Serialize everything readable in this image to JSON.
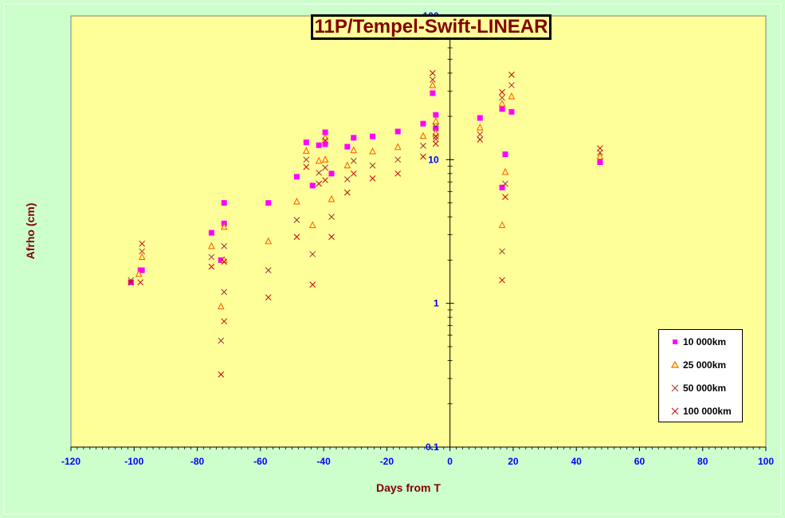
{
  "colors": {
    "outer_background": "#ccffcc",
    "plot_background": "#ffff99",
    "title_text": "#800000",
    "axis_title": "#800000",
    "tick_label": "#0000ff",
    "series_10000": "#ff00ff",
    "series_25000": "#ff6600",
    "series_50000": "#993333",
    "series_100000": "#cc0000"
  },
  "chart_data": {
    "type": "scatter",
    "title": "11P/Tempel-Swift-LINEAR",
    "xlabel": "Days from  T",
    "ylabel": "Afrho (cm)",
    "xlim": [
      -120,
      100
    ],
    "ylim": [
      0.1,
      100
    ],
    "yscale": "log",
    "x_ticks": [
      -120,
      -100,
      -80,
      -60,
      -40,
      -20,
      0,
      20,
      40,
      60,
      80,
      100
    ],
    "y_ticks": [
      0.1,
      1,
      10,
      100
    ],
    "y_tick_labels": [
      "0.1",
      "1",
      "10",
      "100"
    ],
    "grid": false,
    "y_axis_position": "x=0",
    "legend_position": "bottom-right",
    "series": [
      {
        "name": "10 000km",
        "marker": "square",
        "color": "#ff00ff",
        "points": [
          [
            -101,
            1.4
          ],
          [
            -98,
            1.7
          ],
          [
            -97.5,
            1.7
          ],
          [
            -75.5,
            3.1
          ],
          [
            -72.5,
            2.0
          ],
          [
            -71.5,
            5.0
          ],
          [
            -71.5,
            3.6
          ],
          [
            -57.5,
            5.0
          ],
          [
            -48.5,
            7.6
          ],
          [
            -45.5,
            13.2
          ],
          [
            -43.5,
            6.6
          ],
          [
            -41.5,
            12.6
          ],
          [
            -39.5,
            15.5
          ],
          [
            -39.5,
            12.8
          ],
          [
            -37.5,
            8.0
          ],
          [
            -32.5,
            12.3
          ],
          [
            -30.5,
            14.2
          ],
          [
            -24.5,
            14.5
          ],
          [
            -16.5,
            15.7
          ],
          [
            -8.5,
            17.8
          ],
          [
            -5.5,
            29.0
          ],
          [
            -4.5,
            20.5
          ],
          [
            -4.5,
            16.5
          ],
          [
            9.5,
            19.5
          ],
          [
            16.5,
            22.5
          ],
          [
            16.5,
            6.4
          ],
          [
            17.5,
            10.9
          ],
          [
            19.5,
            21.5
          ],
          [
            47.5,
            9.6
          ]
        ]
      },
      {
        "name": "25 000km",
        "marker": "triangle",
        "color": "#ff6600",
        "points": [
          [
            -98.5,
            1.6
          ],
          [
            -97.5,
            2.1
          ],
          [
            -75.5,
            2.5
          ],
          [
            -72.5,
            0.95
          ],
          [
            -71.5,
            3.4
          ],
          [
            -71.5,
            2.0
          ],
          [
            -57.5,
            2.7
          ],
          [
            -48.5,
            5.1
          ],
          [
            -45.5,
            11.5
          ],
          [
            -43.5,
            3.5
          ],
          [
            -41.5,
            9.8
          ],
          [
            -39.5,
            14.2
          ],
          [
            -39.5,
            10.0
          ],
          [
            -37.5,
            5.3
          ],
          [
            -32.5,
            9.1
          ],
          [
            -30.5,
            11.6
          ],
          [
            -24.5,
            11.4
          ],
          [
            -16.5,
            12.2
          ],
          [
            -8.5,
            14.6
          ],
          [
            -5.5,
            33.0
          ],
          [
            -4.5,
            18.5
          ],
          [
            -4.5,
            15.3
          ],
          [
            9.5,
            16.7
          ],
          [
            16.5,
            24.5
          ],
          [
            16.5,
            3.5
          ],
          [
            17.5,
            8.2
          ],
          [
            19.5,
            27.5
          ],
          [
            47.5,
            10.5
          ]
        ]
      },
      {
        "name": "50 000km",
        "marker": "x",
        "color": "#993333",
        "points": [
          [
            -101,
            1.45
          ],
          [
            -97.5,
            2.3
          ],
          [
            -75.5,
            2.1
          ],
          [
            -72.5,
            0.55
          ],
          [
            -71.5,
            2.5
          ],
          [
            -71.5,
            1.2
          ],
          [
            -57.5,
            1.7
          ],
          [
            -48.5,
            3.8
          ],
          [
            -45.5,
            10.0
          ],
          [
            -43.5,
            2.2
          ],
          [
            -41.5,
            8.1
          ],
          [
            -39.5,
            13.6
          ],
          [
            -39.5,
            8.8
          ],
          [
            -37.5,
            4.0
          ],
          [
            -32.5,
            7.3
          ],
          [
            -30.5,
            9.8
          ],
          [
            -24.5,
            9.1
          ],
          [
            -16.5,
            10.0
          ],
          [
            -8.5,
            12.5
          ],
          [
            -5.5,
            36.0
          ],
          [
            -4.5,
            17.0
          ],
          [
            -4.5,
            13.9
          ],
          [
            9.5,
            15.0
          ],
          [
            16.5,
            27.0
          ],
          [
            16.5,
            2.3
          ],
          [
            17.5,
            6.8
          ],
          [
            19.5,
            33.0
          ],
          [
            47.5,
            11.2
          ]
        ]
      },
      {
        "name": "100 000km",
        "marker": "x",
        "color": "#cc0000",
        "points": [
          [
            -101,
            1.4
          ],
          [
            -98,
            1.4
          ],
          [
            -97.5,
            2.6
          ],
          [
            -75.5,
            1.8
          ],
          [
            -72.5,
            0.32
          ],
          [
            -71.5,
            1.95
          ],
          [
            -71.5,
            0.75
          ],
          [
            -57.5,
            1.1
          ],
          [
            -48.5,
            2.9
          ],
          [
            -45.5,
            8.9
          ],
          [
            -43.5,
            1.35
          ],
          [
            -41.5,
            6.8
          ],
          [
            -39.5,
            7.2
          ],
          [
            -37.5,
            2.9
          ],
          [
            -32.5,
            5.9
          ],
          [
            -30.5,
            8.0
          ],
          [
            -24.5,
            7.4
          ],
          [
            -16.5,
            8.0
          ],
          [
            -8.5,
            10.5
          ],
          [
            -5.5,
            40.0
          ],
          [
            -4.5,
            14.5
          ],
          [
            -4.5,
            12.9
          ],
          [
            9.5,
            13.8
          ],
          [
            16.5,
            29.5
          ],
          [
            16.5,
            1.45
          ],
          [
            17.5,
            5.5
          ],
          [
            19.5,
            39.0
          ],
          [
            47.5,
            12.0
          ]
        ]
      }
    ]
  }
}
